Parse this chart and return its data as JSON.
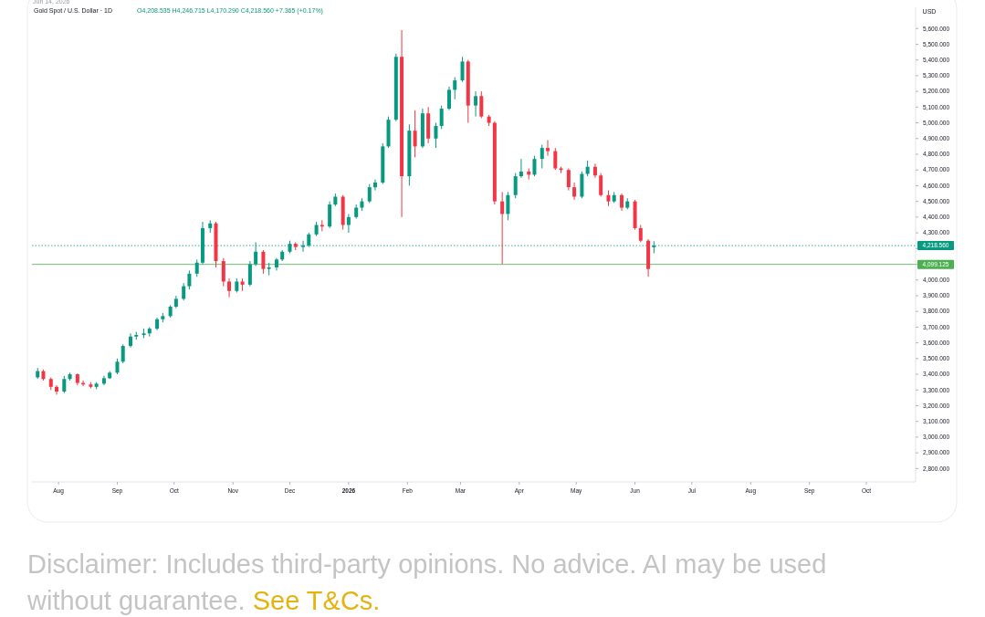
{
  "chart_data": {
    "type": "candlestick",
    "title": "Gold Spot / U.S. Dollar · 1D",
    "subtitle": "O4,208.535 H4,246.715 L4,170.290 C4,218.560 +7.365 (+0.17%)",
    "ylabel": "USD",
    "annotations": [
      "Jun 14, 2026",
      "Disclaimer: Includes third-party opinions. No advice. AI may be used without guarantee.",
      "See T&Cs."
    ],
    "x": [
      "2025-07-21",
      "2025-07-24",
      "2025-07-28",
      "2025-07-31",
      "2025-08-04",
      "2025-08-07",
      "2025-08-11",
      "2025-08-14",
      "2025-08-18",
      "2025-08-21",
      "2025-08-25",
      "2025-08-28",
      "2025-09-01",
      "2025-09-04",
      "2025-09-08",
      "2025-09-11",
      "2025-09-15",
      "2025-09-18",
      "2025-09-22",
      "2025-09-25",
      "2025-09-29",
      "2025-10-02",
      "2025-10-06",
      "2025-10-09",
      "2025-10-13",
      "2025-10-16",
      "2025-10-20",
      "2025-10-23",
      "2025-10-27",
      "2025-10-30",
      "2025-11-03",
      "2025-11-06",
      "2025-11-10",
      "2025-11-13",
      "2025-11-17",
      "2025-11-20",
      "2025-11-24",
      "2025-11-27",
      "2025-12-01",
      "2025-12-04",
      "2025-12-08",
      "2025-12-11",
      "2025-12-15",
      "2025-12-18",
      "2025-12-22",
      "2025-12-25",
      "2025-12-29",
      "2026-01-01",
      "2026-01-05",
      "2026-01-08",
      "2026-01-12",
      "2026-01-15",
      "2026-01-19",
      "2026-01-22",
      "2026-01-26",
      "2026-01-29",
      "2026-02-02",
      "2026-02-05",
      "2026-02-09",
      "2026-02-12",
      "2026-02-16",
      "2026-02-19",
      "2026-02-23",
      "2026-02-26",
      "2026-03-02",
      "2026-03-05",
      "2026-03-09",
      "2026-03-12",
      "2026-03-16",
      "2026-03-19",
      "2026-03-23",
      "2026-03-26",
      "2026-03-30",
      "2026-04-02",
      "2026-04-06",
      "2026-04-09",
      "2026-04-13",
      "2026-04-16",
      "2026-04-20",
      "2026-04-23",
      "2026-04-27",
      "2026-04-30",
      "2026-05-04",
      "2026-05-07",
      "2026-05-11",
      "2026-05-14",
      "2026-05-18",
      "2026-05-21",
      "2026-05-25",
      "2026-05-28",
      "2026-06-01",
      "2026-06-04",
      "2026-06-08",
      "2026-06-11"
    ],
    "ohlc": [
      [
        3380,
        3440,
        3370,
        3420
      ],
      [
        3420,
        3430,
        3360,
        3370
      ],
      [
        3370,
        3380,
        3300,
        3320
      ],
      [
        3320,
        3330,
        3270,
        3290
      ],
      [
        3290,
        3390,
        3280,
        3370
      ],
      [
        3370,
        3410,
        3360,
        3400
      ],
      [
        3400,
        3405,
        3330,
        3345
      ],
      [
        3345,
        3360,
        3325,
        3335
      ],
      [
        3335,
        3350,
        3310,
        3320
      ],
      [
        3320,
        3350,
        3305,
        3340
      ],
      [
        3340,
        3390,
        3330,
        3375
      ],
      [
        3375,
        3420,
        3370,
        3410
      ],
      [
        3410,
        3500,
        3400,
        3480
      ],
      [
        3480,
        3590,
        3470,
        3580
      ],
      [
        3580,
        3660,
        3570,
        3640
      ],
      [
        3640,
        3670,
        3620,
        3650
      ],
      [
        3650,
        3690,
        3630,
        3660
      ],
      [
        3660,
        3700,
        3640,
        3690
      ],
      [
        3690,
        3760,
        3680,
        3750
      ],
      [
        3750,
        3790,
        3730,
        3770
      ],
      [
        3770,
        3840,
        3760,
        3830
      ],
      [
        3830,
        3900,
        3820,
        3880
      ],
      [
        3880,
        3980,
        3870,
        3960
      ],
      [
        3960,
        4060,
        3940,
        4040
      ],
      [
        4040,
        4130,
        4020,
        4110
      ],
      [
        4110,
        4370,
        4100,
        4330
      ],
      [
        4330,
        4380,
        4300,
        4360
      ],
      [
        4360,
        4370,
        4080,
        4120
      ],
      [
        4120,
        4140,
        3960,
        3990
      ],
      [
        3990,
        4010,
        3890,
        3930
      ],
      [
        3930,
        4010,
        3920,
        3990
      ],
      [
        3990,
        4010,
        3930,
        3970
      ],
      [
        3970,
        4120,
        3960,
        4100
      ],
      [
        4100,
        4240,
        4090,
        4180
      ],
      [
        4180,
        4190,
        4040,
        4070
      ],
      [
        4070,
        4110,
        4030,
        4080
      ],
      [
        4080,
        4140,
        4060,
        4130
      ],
      [
        4130,
        4190,
        4120,
        4180
      ],
      [
        4180,
        4250,
        4170,
        4230
      ],
      [
        4230,
        4240,
        4190,
        4210
      ],
      [
        4210,
        4250,
        4180,
        4220
      ],
      [
        4220,
        4300,
        4210,
        4290
      ],
      [
        4290,
        4370,
        4280,
        4350
      ],
      [
        4350,
        4380,
        4310,
        4340
      ],
      [
        4340,
        4500,
        4330,
        4480
      ],
      [
        4480,
        4550,
        4470,
        4530
      ],
      [
        4530,
        4540,
        4320,
        4350
      ],
      [
        4350,
        4420,
        4300,
        4400
      ],
      [
        4400,
        4480,
        4390,
        4460
      ],
      [
        4460,
        4520,
        4440,
        4500
      ],
      [
        4500,
        4610,
        4490,
        4590
      ],
      [
        4590,
        4640,
        4570,
        4620
      ],
      [
        4620,
        4870,
        4610,
        4850
      ],
      [
        4850,
        5040,
        4840,
        5020
      ],
      [
        5020,
        5440,
        5010,
        5420
      ],
      [
        5420,
        5590,
        4400,
        4660
      ],
      [
        4660,
        4990,
        4600,
        4950
      ],
      [
        4950,
        5080,
        4780,
        4850
      ],
      [
        4850,
        5090,
        4840,
        5060
      ],
      [
        5060,
        5100,
        4870,
        4900
      ],
      [
        4900,
        5000,
        4840,
        4980
      ],
      [
        4980,
        5110,
        4960,
        5090
      ],
      [
        5090,
        5230,
        5080,
        5210
      ],
      [
        5210,
        5290,
        5150,
        5270
      ],
      [
        5270,
        5420,
        5260,
        5390
      ],
      [
        5390,
        5400,
        5000,
        5110
      ],
      [
        5110,
        5200,
        5040,
        5170
      ],
      [
        5170,
        5200,
        5030,
        5040
      ],
      [
        5040,
        5050,
        4980,
        5000
      ],
      [
        5000,
        5010,
        4480,
        4500
      ],
      [
        4500,
        4560,
        4100,
        4420
      ],
      [
        4420,
        4560,
        4380,
        4540
      ],
      [
        4540,
        4680,
        4520,
        4660
      ],
      [
        4660,
        4770,
        4650,
        4690
      ],
      [
        4690,
        4710,
        4640,
        4670
      ],
      [
        4670,
        4790,
        4660,
        4770
      ],
      [
        4770,
        4860,
        4710,
        4840
      ],
      [
        4840,
        4890,
        4790,
        4820
      ],
      [
        4820,
        4840,
        4700,
        4710
      ],
      [
        4710,
        4720,
        4680,
        4700
      ],
      [
        4700,
        4710,
        4570,
        4590
      ],
      [
        4590,
        4620,
        4510,
        4530
      ],
      [
        4530,
        4690,
        4520,
        4675
      ],
      [
        4675,
        4760,
        4660,
        4720
      ],
      [
        4720,
        4740,
        4650,
        4665
      ],
      [
        4665,
        4680,
        4530,
        4540
      ],
      [
        4540,
        4570,
        4470,
        4500
      ],
      [
        4500,
        4560,
        4490,
        4540
      ],
      [
        4540,
        4550,
        4440,
        4460
      ],
      [
        4460,
        4520,
        4450,
        4500
      ],
      [
        4500,
        4510,
        4320,
        4330
      ],
      [
        4330,
        4350,
        4240,
        4250
      ],
      [
        4250,
        4260,
        4020,
        4070
      ],
      [
        4208.535,
        4246.715,
        4170.29,
        4218.56
      ]
    ],
    "colors": [
      "#089981",
      "#f23645",
      "#f23645",
      "#f23645",
      "#089981",
      "#089981",
      "#f23645",
      "#f23645",
      "#f23645",
      "#089981",
      "#089981",
      "#089981",
      "#089981",
      "#089981",
      "#089981",
      "#089981",
      "#089981",
      "#089981",
      "#089981",
      "#089981",
      "#089981",
      "#089981",
      "#089981",
      "#089981",
      "#089981",
      "#089981",
      "#089981",
      "#f23645",
      "#f23645",
      "#f23645",
      "#089981",
      "#f23645",
      "#089981",
      "#089981",
      "#f23645",
      "#089981",
      "#089981",
      "#089981",
      "#089981",
      "#f23645",
      "#089981",
      "#089981",
      "#089981",
      "#f23645",
      "#089981",
      "#089981",
      "#f23645",
      "#089981",
      "#089981",
      "#089981",
      "#089981",
      "#089981",
      "#089981",
      "#089981",
      "#089981",
      "#f23645",
      "#089981",
      "#f23645",
      "#089981",
      "#f23645",
      "#089981",
      "#089981",
      "#089981",
      "#089981",
      "#089981",
      "#f23645",
      "#089981",
      "#f23645",
      "#f23645",
      "#f23645",
      "#f23645",
      "#089981",
      "#089981",
      "#089981",
      "#f23645",
      "#089981",
      "#089981",
      "#f23645",
      "#f23645",
      "#f23645",
      "#f23645",
      "#f23645",
      "#089981",
      "#089981",
      "#f23645",
      "#f23645",
      "#f23645",
      "#089981",
      "#f23645",
      "#089981",
      "#f23645",
      "#f23645",
      "#f23645",
      "#089981"
    ],
    "xlim": [
      "2025-07-18",
      "2026-10-27"
    ],
    "xticks": [
      {
        "value": "2025-08-01",
        "label": "Aug"
      },
      {
        "value": "2025-09-01",
        "label": "Sep"
      },
      {
        "value": "2025-10-01",
        "label": "Oct"
      },
      {
        "value": "2025-11-01",
        "label": "Nov"
      },
      {
        "value": "2025-12-01",
        "label": "Dec"
      },
      {
        "value": "2026-01-01",
        "label": "2026"
      },
      {
        "value": "2026-02-01",
        "label": "Feb"
      },
      {
        "value": "2026-03-01",
        "label": "Mar"
      },
      {
        "value": "2026-04-01",
        "label": "Apr"
      },
      {
        "value": "2026-05-01",
        "label": "May"
      },
      {
        "value": "2026-06-01",
        "label": "Jun"
      },
      {
        "value": "2026-07-01",
        "label": "Jul"
      },
      {
        "value": "2026-08-01",
        "label": "Aug"
      },
      {
        "value": "2026-09-01",
        "label": "Sep"
      },
      {
        "value": "2026-10-01",
        "label": "Oct"
      }
    ],
    "ylim": [
      2715,
      5735
    ],
    "yticks": [
      {
        "value": 2800,
        "label": "2,800.000"
      },
      {
        "value": 2900,
        "label": "2,900.000"
      },
      {
        "value": 3000,
        "label": "3,000.000"
      },
      {
        "value": 3100,
        "label": "3,100.000"
      },
      {
        "value": 3200,
        "label": "3,200.000"
      },
      {
        "value": 3300,
        "label": "3,300.000"
      },
      {
        "value": 3400,
        "label": "3,400.000"
      },
      {
        "value": 3500,
        "label": "3,500.000"
      },
      {
        "value": 3600,
        "label": "3,600.000"
      },
      {
        "value": 3700,
        "label": "3,700.000"
      },
      {
        "value": 3800,
        "label": "3,800.000"
      },
      {
        "value": 3900,
        "label": "3,900.000"
      },
      {
        "value": 4000,
        "label": "4,000.000"
      },
      {
        "value": 4100,
        "label": null
      },
      {
        "value": 4200,
        "label": null
      },
      {
        "value": 4300,
        "label": "4,300.000"
      },
      {
        "value": 4400,
        "label": "4,400.000"
      },
      {
        "value": 4500,
        "label": "4,500.000"
      },
      {
        "value": 4600,
        "label": "4,600.000"
      },
      {
        "value": 4700,
        "label": "4,700.000"
      },
      {
        "value": 4800,
        "label": "4,800.000"
      },
      {
        "value": 4900,
        "label": "4,900.000"
      },
      {
        "value": 5000,
        "label": "5,000.000"
      },
      {
        "value": 5100,
        "label": "5,100.000"
      },
      {
        "value": 5200,
        "label": "5,200.000"
      },
      {
        "value": 5300,
        "label": "5,300.000"
      },
      {
        "value": 5400,
        "label": "5,400.000"
      },
      {
        "value": 5500,
        "label": "5,500.000"
      },
      {
        "value": 5600,
        "label": "5,600.000"
      }
    ],
    "ref_lines": [
      {
        "axis": "y",
        "value": 4218.56,
        "label": "4,218.560",
        "color": "#089981",
        "line_style": "dotted"
      },
      {
        "axis": "y",
        "value": 4099.125,
        "label": "4,099.125",
        "color": "#4caf50",
        "line_style": "solid"
      }
    ]
  }
}
